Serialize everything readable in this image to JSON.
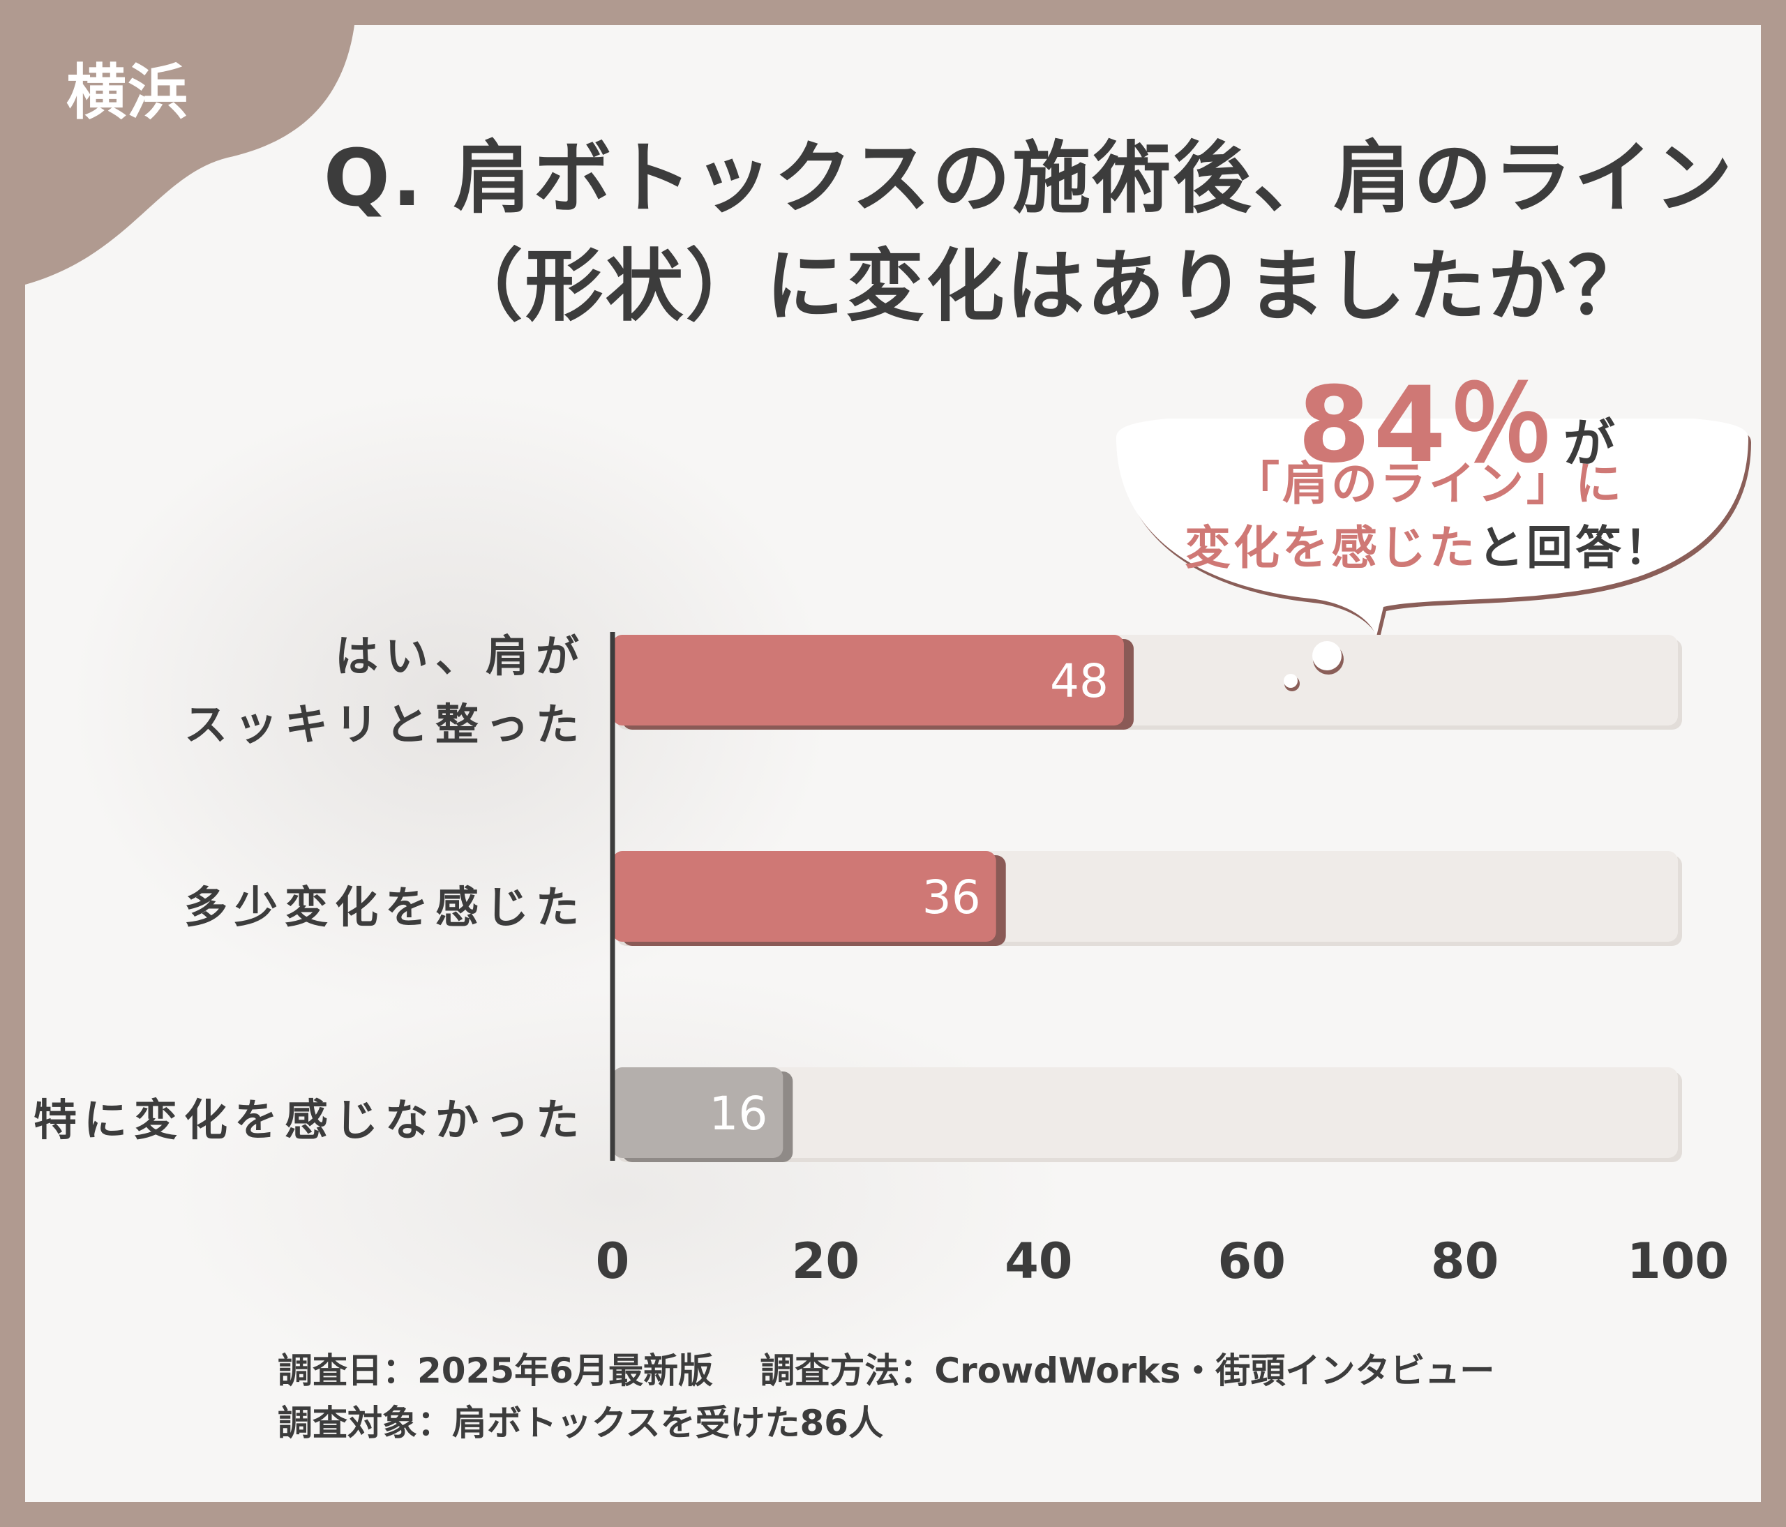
{
  "city_tag": "横浜",
  "title": {
    "line1": "Q. 肩ボトックスの施術後、肩のライン",
    "line2": "（形状）に変化はありましたか？"
  },
  "callout": {
    "percent": "84％",
    "particle": "が",
    "line1": "「肩のライン」に",
    "line2_highlight": "変化を感じた",
    "line2_rest": "と回答！"
  },
  "chart_data": {
    "type": "bar",
    "orientation": "horizontal",
    "categories": [
      "はい、肩がスッキリと整った",
      "多少変化を感じた",
      "特に変化を感じなかった"
    ],
    "category_lines": [
      [
        "はい、肩が",
        "スッキリと整った"
      ],
      [
        "多少変化を感じた"
      ],
      [
        "特に変化を感じなかった"
      ]
    ],
    "values": [
      48,
      36,
      16
    ],
    "xlim": [
      0,
      100
    ],
    "xticks": [
      "0",
      "20",
      "40",
      "60",
      "80",
      "100"
    ],
    "bar_colors": [
      "#cf7875",
      "#cf7875",
      "#b4afac"
    ],
    "track_color": "#efebe8",
    "grid": false,
    "data_labels": true
  },
  "footer": {
    "line1": "調査日：2025年6月最新版　 調査方法：CrowdWorks・街頭インタビュー",
    "line2": "調査対象：肩ボトックスを受けた86人"
  },
  "colors": {
    "frame": "#b09a90",
    "accent": "#cf7875",
    "text": "#3c3c3c"
  }
}
